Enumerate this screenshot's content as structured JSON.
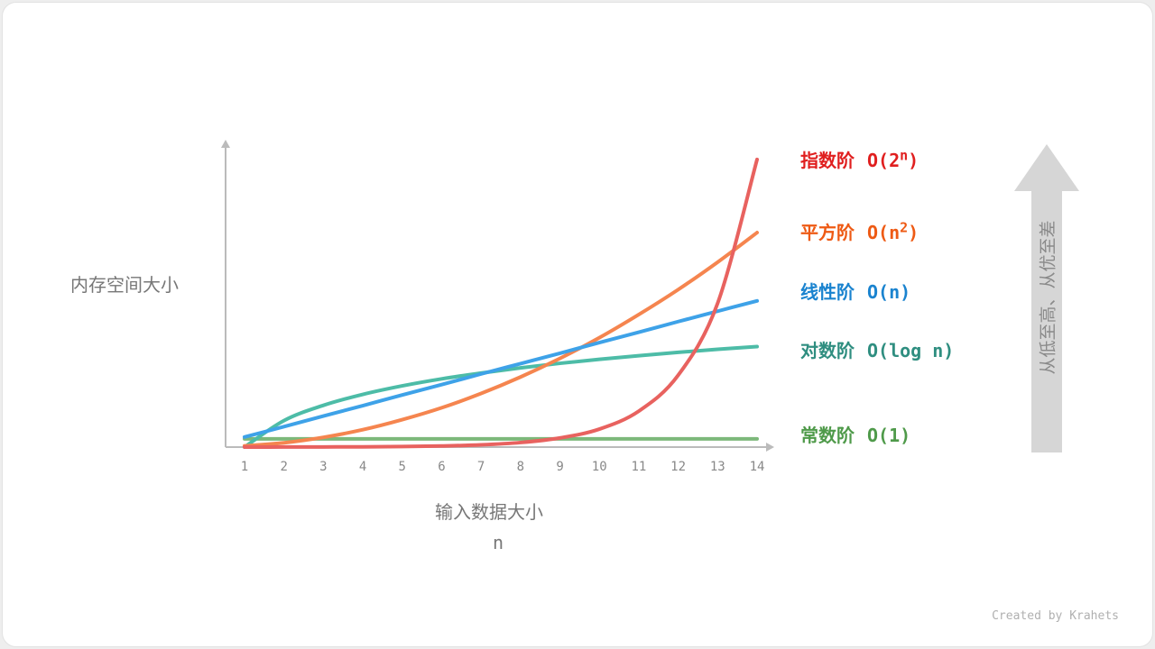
{
  "chart_data": {
    "type": "line",
    "xlabel": "输入数据大小",
    "xvar": "n",
    "ylabel": "内存空间大小",
    "x": [
      1,
      2,
      3,
      4,
      5,
      6,
      7,
      8,
      9,
      10,
      11,
      12,
      13,
      14
    ],
    "xlim": [
      1,
      14
    ],
    "ylim": [
      0,
      100
    ],
    "grid": false,
    "legend_position": "right",
    "series": [
      {
        "name": "指数阶",
        "complexity": "O(2",
        "sup": "n",
        "close": ")",
        "line_color": "#e8625f",
        "label_color": "#e01f1f",
        "values": [
          0.01,
          0.02,
          0.05,
          0.09,
          0.18,
          0.37,
          0.74,
          1.5,
          3.0,
          5.9,
          11.8,
          23.6,
          47.2,
          94.4
        ]
      },
      {
        "name": "平方阶",
        "complexity": "O(n",
        "sup": "2",
        "close": ")",
        "line_color": "#f5854f",
        "label_color": "#ee5a14",
        "values": [
          0.4,
          1.4,
          3.2,
          5.7,
          9.0,
          12.9,
          17.6,
          23.0,
          29.1,
          35.9,
          43.5,
          51.7,
          60.7,
          70.4
        ]
      },
      {
        "name": "线性阶",
        "complexity": "O(n)",
        "sup": "",
        "close": "",
        "line_color": "#3ea2e8",
        "label_color": "#1a83cf",
        "values": [
          3.3,
          6.7,
          10.2,
          13.6,
          17.1,
          20.5,
          24.0,
          27.4,
          30.8,
          34.3,
          37.7,
          41.2,
          44.6,
          48.0
        ]
      },
      {
        "name": "对数阶",
        "complexity": "O(log n)",
        "sup": "",
        "close": "",
        "line_color": "#4dbca7",
        "label_color": "#2f8e80",
        "values": [
          0,
          8.7,
          13.7,
          17.3,
          20.1,
          22.4,
          24.3,
          26.0,
          27.5,
          28.8,
          30.0,
          31.1,
          32.1,
          33.0
        ]
      },
      {
        "name": "常数阶",
        "complexity": "O(1)",
        "sup": "",
        "close": "",
        "line_color": "#7cb87a",
        "label_color": "#4f9a4a",
        "values": [
          2.7,
          2.7,
          2.7,
          2.7,
          2.7,
          2.7,
          2.7,
          2.7,
          2.7,
          2.7,
          2.7,
          2.7,
          2.7,
          2.7
        ]
      }
    ]
  },
  "side_arrow": {
    "text": "从低至高、从优至差"
  },
  "credit": "Created by Krahets"
}
